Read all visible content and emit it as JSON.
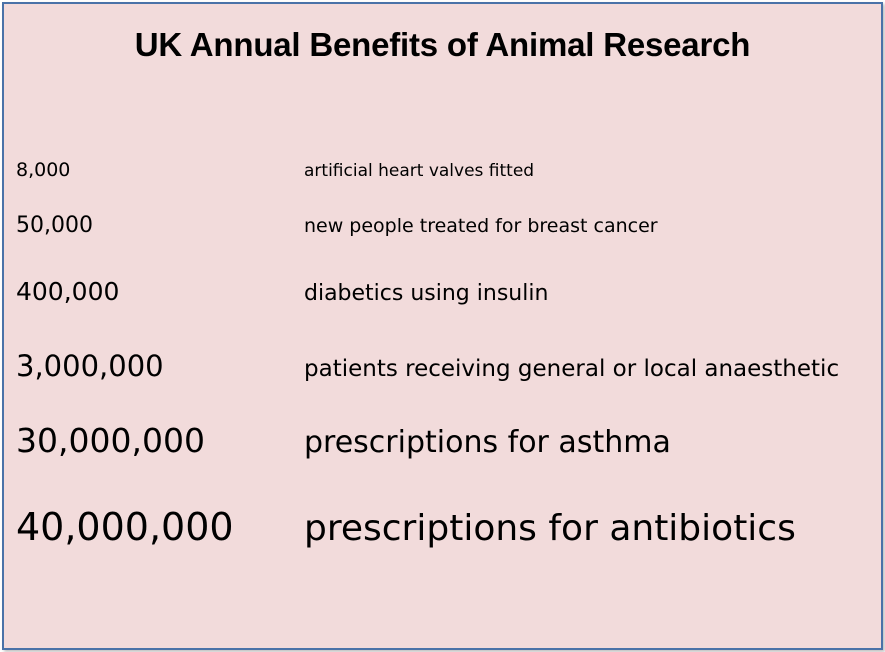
{
  "title": "UK Annual Benefits of Animal Research",
  "rows": [
    {
      "number": "8,000",
      "description": "artificial heart valves fitted"
    },
    {
      "number": "50,000",
      "description": "new people treated for breast cancer"
    },
    {
      "number": "400,000",
      "description": "diabetics using insulin"
    },
    {
      "number": "3,000,000",
      "description": "patients receiving general or local anaesthetic"
    },
    {
      "number": "30,000,000",
      "description": "prescriptions for asthma"
    },
    {
      "number": "40,000,000",
      "description": "prescriptions for antibiotics"
    }
  ],
  "colors": {
    "background": "#f2dbdb",
    "border": "#4a72a8"
  }
}
